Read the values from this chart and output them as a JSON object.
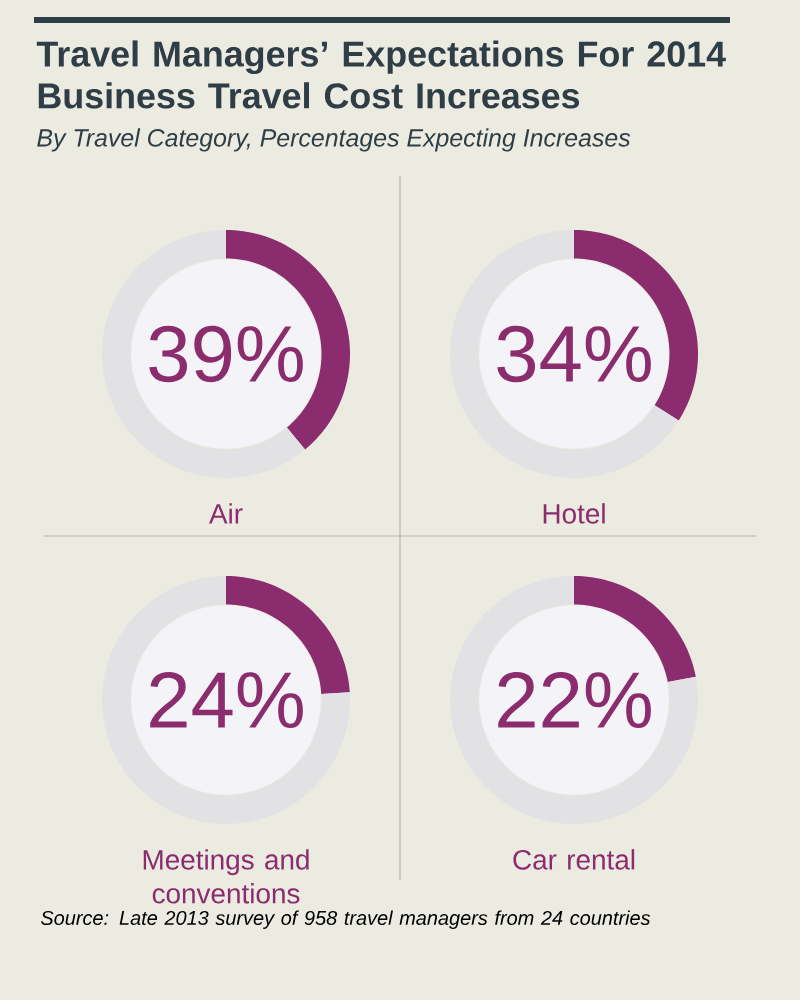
{
  "chart_data": [
    {
      "type": "other",
      "title": "Travel Managers’ Expectations For 2014 Business Travel Cost Increases",
      "subtitle": "By Travel Category, Percentages Expecting Increases"
    },
    {
      "type": "donut",
      "title": "Air",
      "categories": [
        null,
        null
      ],
      "values": [
        39,
        61
      ],
      "colors": [
        "#8a2c6d",
        "#e2e1e4"
      ],
      "value_labels": [
        "39%",
        null
      ]
    },
    {
      "type": "donut",
      "title": "Hotel",
      "categories": [
        null,
        null
      ],
      "values": [
        34,
        66
      ],
      "colors": [
        "#8a2c6d",
        "#e2e1e4"
      ],
      "value_labels": [
        "34%",
        null
      ]
    },
    {
      "type": "donut",
      "title": "Meetings and conventions",
      "categories": [
        null,
        null
      ],
      "values": [
        24,
        76
      ],
      "colors": [
        "#8a2c6d",
        "#e2e1e4"
      ],
      "value_labels": [
        "24%",
        null
      ]
    },
    {
      "type": "donut",
      "title": "Car rental",
      "categories": [
        null,
        null
      ],
      "values": [
        22,
        78
      ],
      "colors": [
        "#8a2c6d",
        "#e2e1e4"
      ],
      "value_labels": [
        "22%",
        null
      ]
    },
    {
      "type": "other",
      "annotations": [
        "Source: Late 2013 survey of 958 travel managers from 24 countries"
      ]
    }
  ]
}
